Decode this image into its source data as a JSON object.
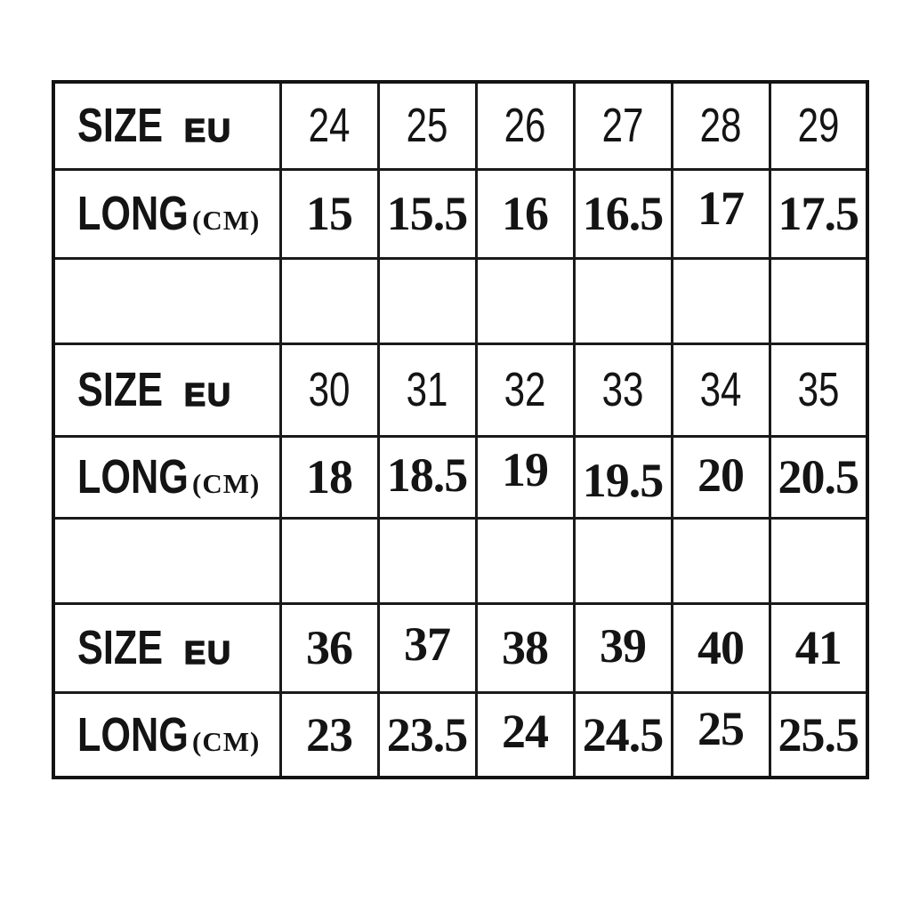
{
  "colors": {
    "ink": "#141414",
    "paper": "#ffffff",
    "grid_line": "#1a1a1a"
  },
  "chart_data": {
    "type": "table",
    "labels": {
      "size": "SIZE",
      "size_unit": "EU",
      "long": "LONG",
      "long_unit": "(CM)"
    },
    "sections": [
      {
        "eu_sizes": [
          "24",
          "25",
          "26",
          "27",
          "28",
          "29"
        ],
        "long_cm": [
          "15",
          "15.5",
          "16",
          "16.5",
          "17",
          "17.5"
        ]
      },
      {
        "eu_sizes": [
          "30",
          "31",
          "32",
          "33",
          "34",
          "35"
        ],
        "long_cm": [
          "18",
          "18.5",
          "19",
          "19.5",
          "20",
          "20.5"
        ]
      },
      {
        "eu_sizes": [
          "36",
          "37",
          "38",
          "39",
          "40",
          "41"
        ],
        "long_cm": [
          "23",
          "23.5",
          "24",
          "24.5",
          "25",
          "25.5"
        ]
      }
    ]
  }
}
